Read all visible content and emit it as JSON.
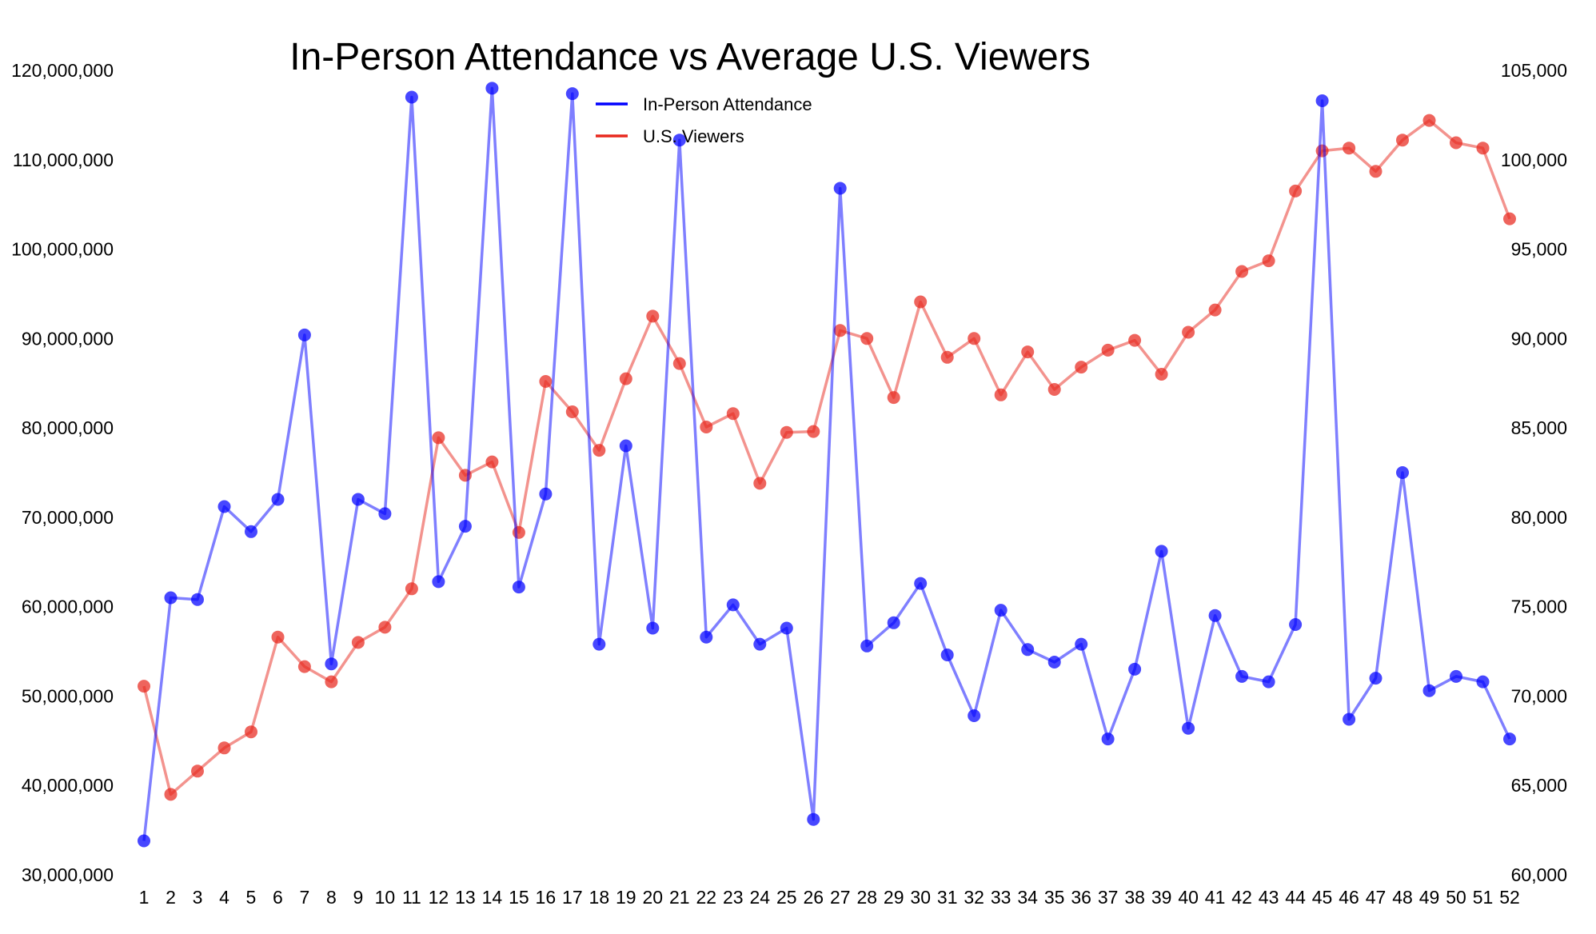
{
  "chart_data": {
    "type": "line",
    "title": "In-Person Attendance vs Average U.S. Viewers",
    "xlabel": "",
    "ylabel_left": "",
    "ylabel_right": "",
    "x": [
      1,
      2,
      3,
      4,
      5,
      6,
      7,
      8,
      9,
      10,
      11,
      12,
      13,
      14,
      15,
      16,
      17,
      18,
      19,
      20,
      21,
      22,
      23,
      24,
      25,
      26,
      27,
      28,
      29,
      30,
      31,
      32,
      33,
      34,
      35,
      36,
      37,
      38,
      39,
      40,
      41,
      42,
      43,
      44,
      45,
      46,
      47,
      48,
      49,
      50,
      51,
      52
    ],
    "y_left_lim": [
      30000000,
      120000000
    ],
    "y_left_ticks": [
      "30,000,000",
      "40,000,000",
      "50,000,000",
      "60,000,000",
      "70,000,000",
      "80,000,000",
      "90,000,000",
      "100,000,000",
      "110,000,000",
      "120,000,000"
    ],
    "y_right_lim": [
      60000,
      105000
    ],
    "y_right_ticks": [
      "60,000",
      "65,000",
      "70,000",
      "75,000",
      "80,000",
      "85,000",
      "90,000",
      "95,000",
      "100,000",
      "105,000"
    ],
    "grid": false,
    "legend_position": "top-center",
    "series": [
      {
        "name": "In-Person Attendance",
        "axis": "right",
        "color": "#0000ff",
        "values": [
          61900,
          75500,
          75400,
          80600,
          79200,
          81000,
          90200,
          71800,
          81000,
          80200,
          103500,
          76400,
          79500,
          104000,
          76100,
          81300,
          103700,
          72900,
          84000,
          73800,
          101100,
          73300,
          75100,
          72900,
          73800,
          63100,
          98400,
          72800,
          74100,
          76300,
          72300,
          68900,
          74800,
          72600,
          71900,
          72900,
          67600,
          71500,
          78100,
          68200,
          74500,
          71100,
          70800,
          74000,
          103300,
          68700,
          71000,
          82500,
          70300,
          71100,
          70800,
          67600
        ]
      },
      {
        "name": "U.S. Viewers",
        "axis": "left",
        "color": "#e8281e",
        "values": [
          51100000,
          39000000,
          41600000,
          44200000,
          46000000,
          56600000,
          53300000,
          51600000,
          56000000,
          57700000,
          62000000,
          78900000,
          74700000,
          76200000,
          68300000,
          85200000,
          81800000,
          77500000,
          85500000,
          92500000,
          87200000,
          80100000,
          81600000,
          73800000,
          79500000,
          79600000,
          90900000,
          90000000,
          83400000,
          94100000,
          87900000,
          90000000,
          83700000,
          88500000,
          84300000,
          86800000,
          88700000,
          89800000,
          86000000,
          90700000,
          93200000,
          97500000,
          98700000,
          106500000,
          111000000,
          111300000,
          108700000,
          112200000,
          114400000,
          111900000,
          111300000,
          103400000
        ]
      }
    ]
  }
}
